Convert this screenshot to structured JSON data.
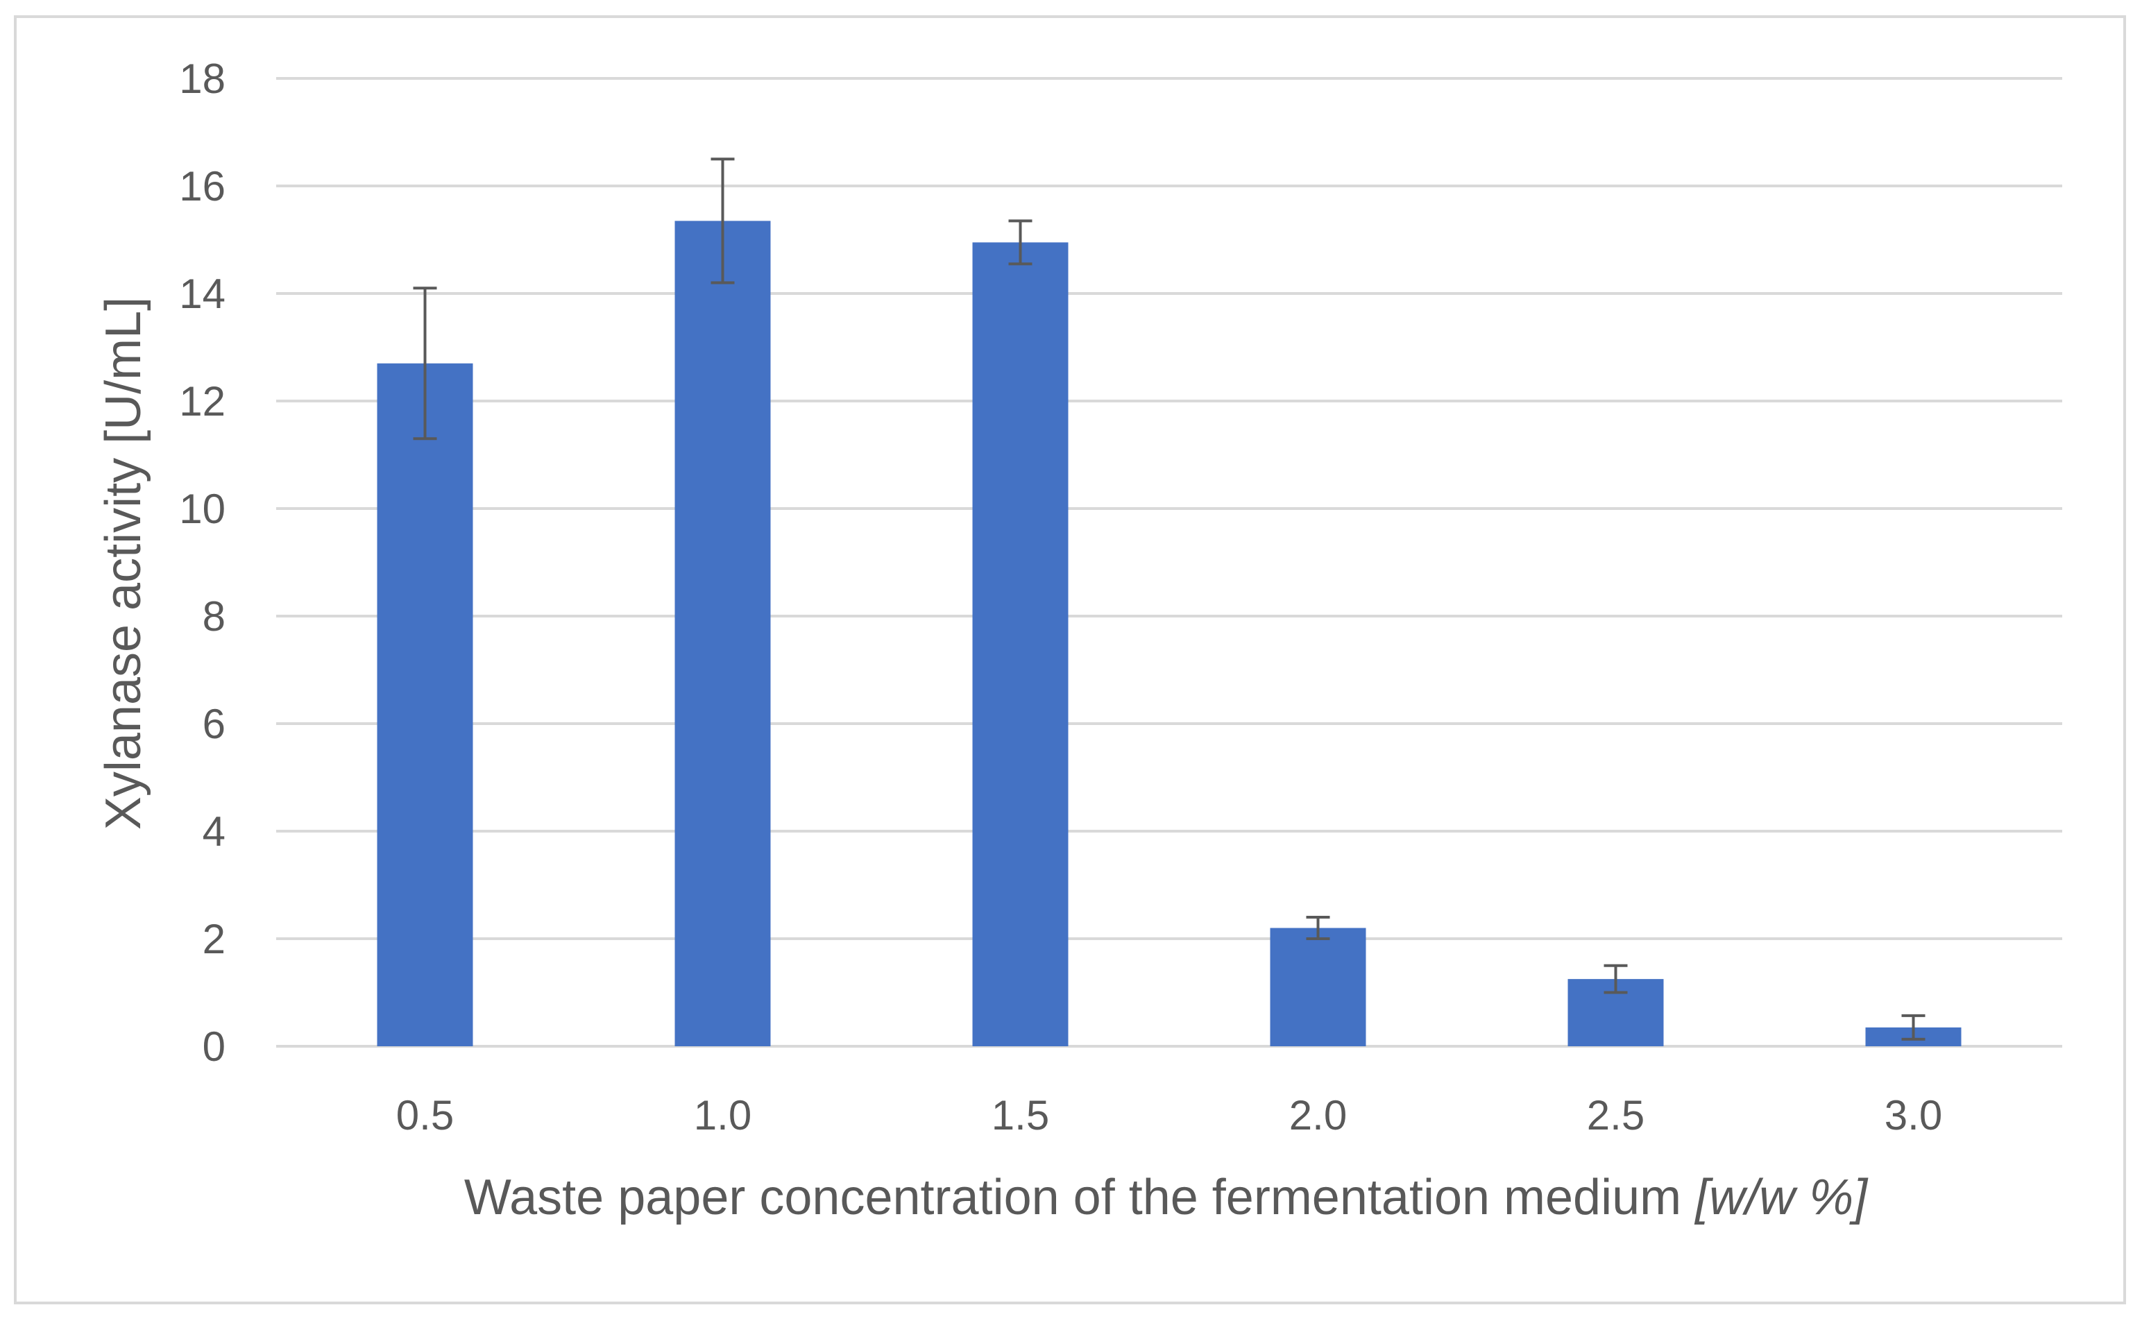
{
  "chart_data": {
    "type": "bar",
    "categories": [
      "0.5",
      "1.0",
      "1.5",
      "2.0",
      "2.5",
      "3.0"
    ],
    "series": [
      {
        "values": [
          12.7,
          15.35,
          14.95,
          2.2,
          1.25,
          0.35
        ],
        "errors": [
          1.4,
          1.15,
          0.4,
          0.2,
          0.25,
          0.22
        ],
        "color": "#4472C4"
      }
    ],
    "xlabel": "Waste paper concentration of the fermentation medium ",
    "xlabel_unit": "[w/w %]",
    "ylabel": "Xylanase activity [U/mL]",
    "ylim": [
      0,
      18
    ],
    "yticks": [
      "0",
      "2",
      "4",
      "6",
      "8",
      "10",
      "12",
      "14",
      "16",
      "18"
    ],
    "grid": true,
    "gridline_color": "#d9d9d9",
    "errorbar_color": "#595959"
  }
}
